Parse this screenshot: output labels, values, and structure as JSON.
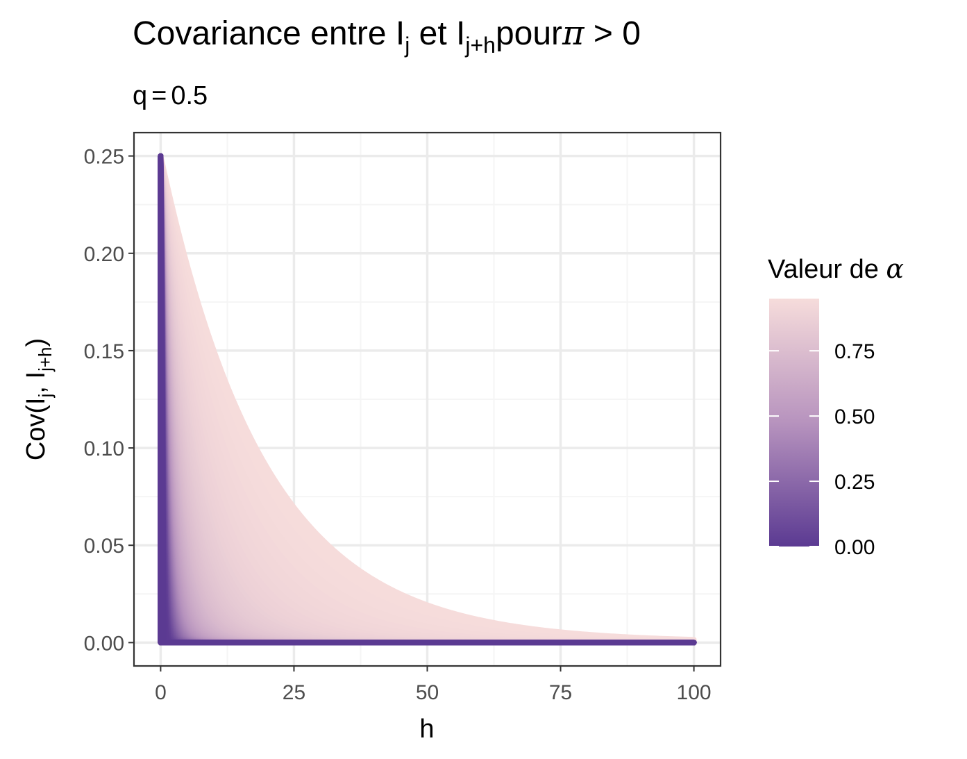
{
  "chart_data": {
    "type": "area",
    "title": {
      "prefix": "Covariance entre I",
      "sub1": "j",
      "middle": " et I",
      "sub2": "j+h",
      "suffix": "pour",
      "greek": "π",
      "tail": " > 0"
    },
    "subtitle": {
      "variable": "q",
      "operator": "=",
      "value": "0.5"
    },
    "xlabel": "h",
    "ylabel": {
      "prefix": "Cov(I",
      "sub1": "j",
      "middle": ", I",
      "sub2": "j+h",
      "suffix": ")"
    },
    "xlim": [
      -5,
      105
    ],
    "ylim": [
      -0.012,
      0.262
    ],
    "x_ticks": [
      0,
      25,
      50,
      75,
      100
    ],
    "x_tick_labels": [
      "0",
      "25",
      "50",
      "75",
      "100"
    ],
    "y_ticks": [
      0.0,
      0.05,
      0.1,
      0.15,
      0.2,
      0.25
    ],
    "y_tick_labels": [
      "0.00",
      "0.05",
      "0.10",
      "0.15",
      "0.20",
      "0.25"
    ],
    "grid": true,
    "series_description": "Cov(I_j, I_j+h) = q(1-q) * alpha^h for alpha from 0 to ~0.95, h from 0 to 100",
    "q": 0.5,
    "alpha_range": [
      0.0,
      0.95
    ],
    "h_range": [
      0,
      100
    ],
    "legend": {
      "title_prefix": "Valeur de ",
      "title_greek": "α",
      "position": "right",
      "ticks": [
        0.0,
        0.25,
        0.5,
        0.75
      ],
      "tick_labels": [
        "0.00",
        "0.25",
        "0.50",
        "0.75"
      ],
      "range": [
        0.0,
        0.95
      ],
      "color_low": "#5b3a92",
      "color_high": "#f6dcdb"
    },
    "colors": {
      "panel_border": "#333333",
      "grid_major": "#ebebeb",
      "grid_minor": "#f5f5f5"
    }
  }
}
